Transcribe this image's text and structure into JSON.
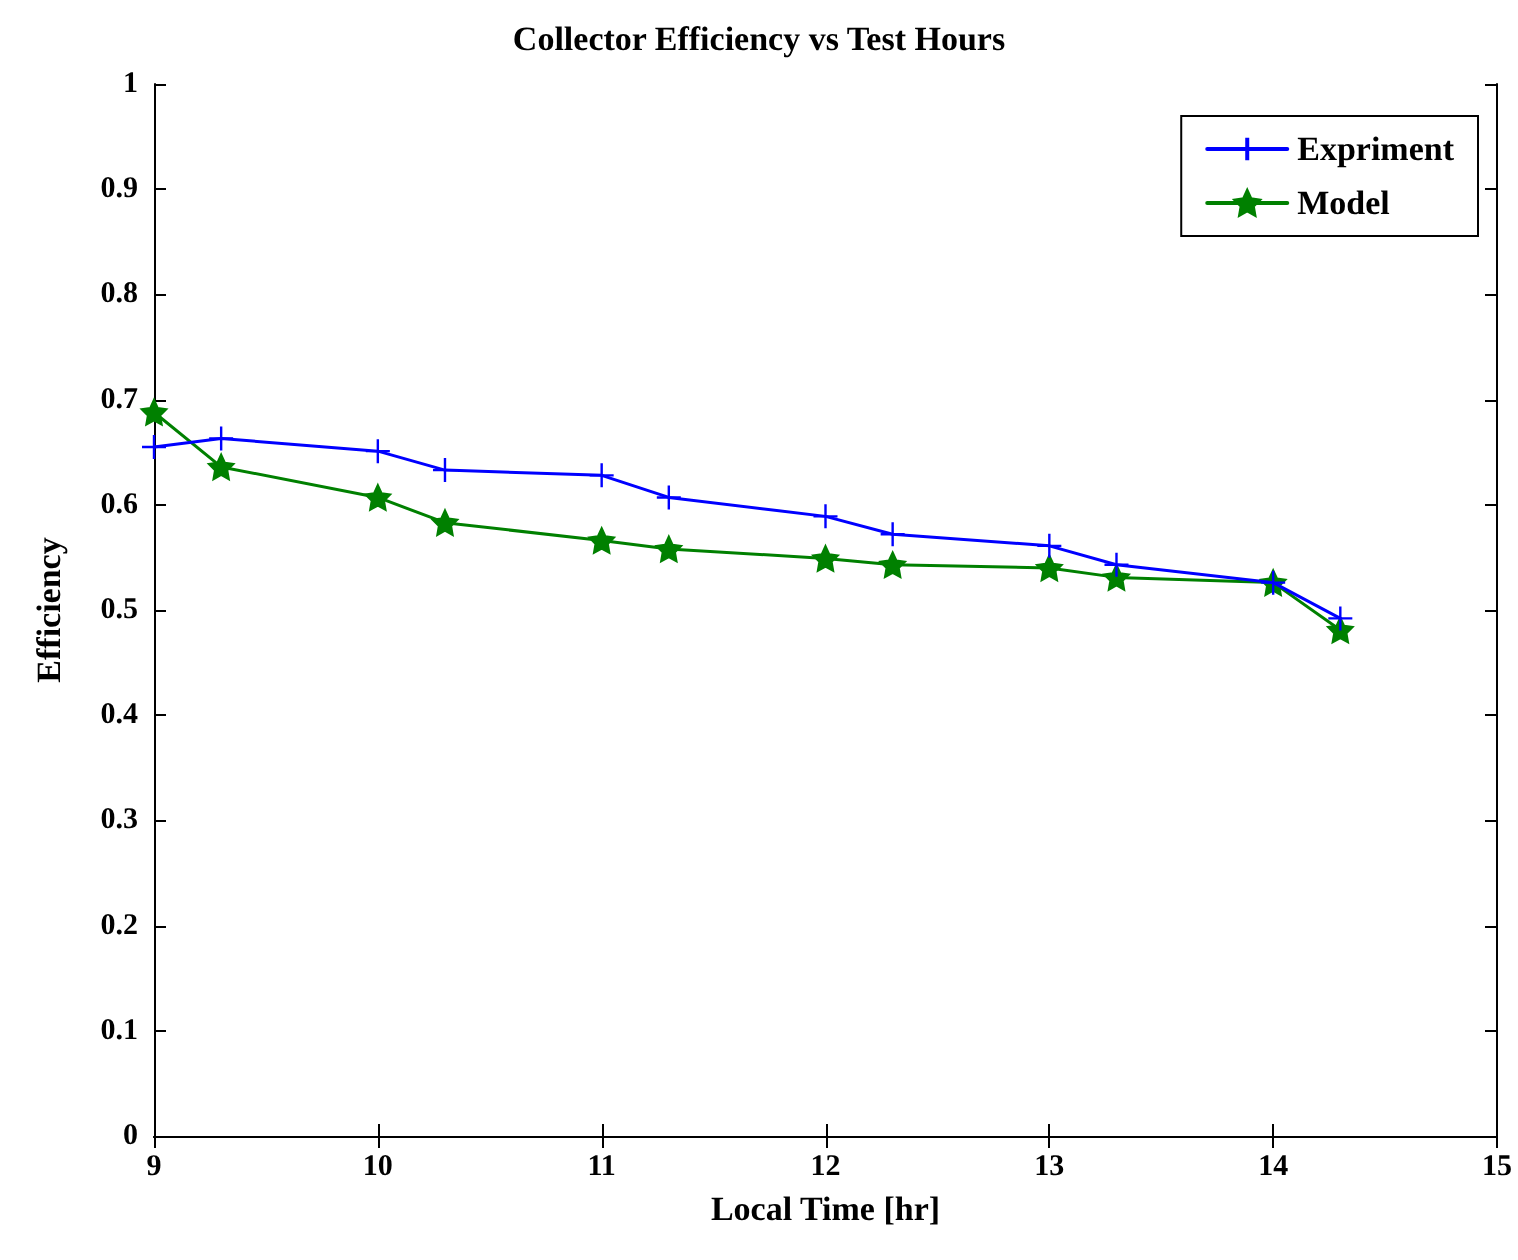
{
  "chart_data": {
    "type": "line",
    "title": "Collector Efficiency vs Test Hours",
    "xlabel": "Local Time [hr]",
    "ylabel": "Efficiency",
    "x": [
      9,
      9.3,
      10,
      10.3,
      11,
      11.3,
      12,
      12.3,
      13,
      13.3,
      14,
      14.3
    ],
    "series": [
      {
        "name": "Expriment",
        "color": "#0000ff",
        "marker": "cross",
        "values": [
          0.655,
          0.663,
          0.651,
          0.633,
          0.628,
          0.607,
          0.589,
          0.572,
          0.561,
          0.543,
          0.526,
          0.492
        ]
      },
      {
        "name": "Model",
        "color": "#008000",
        "marker": "star",
        "values": [
          0.688,
          0.636,
          0.607,
          0.583,
          0.566,
          0.558,
          0.549,
          0.543,
          0.54,
          0.531,
          0.526,
          0.481
        ]
      }
    ],
    "xlim": [
      9,
      15
    ],
    "xticks": [
      9,
      10,
      11,
      12,
      13,
      14,
      15
    ],
    "ylim": [
      0,
      1
    ],
    "yticks": [
      0,
      0.1,
      0.2,
      0.3,
      0.4,
      0.5,
      0.6,
      0.7,
      0.8,
      0.9,
      1
    ],
    "grid": false,
    "legend": "top right",
    "line_style": "solid"
  }
}
